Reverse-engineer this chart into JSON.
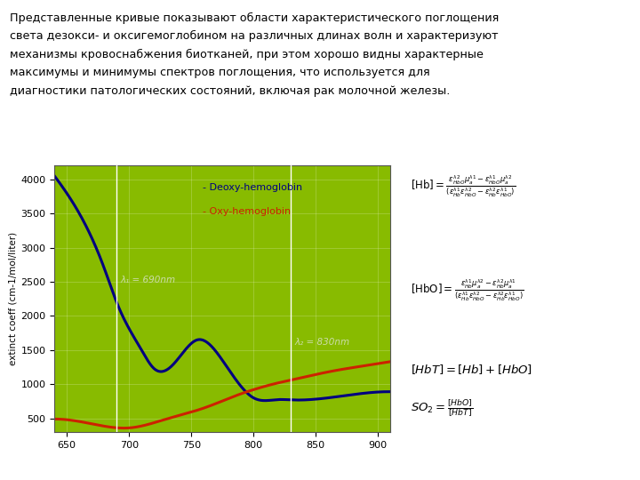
{
  "title_text": "Представленные кривые показывают области характеристического поглощения\nсвета дезокси- и оксигемоглобином на различных длинах волн и характеризуют\nмеханизмы кровоснабжения биотканей, при этом хорошо видны характерные\nмаксимумы и минимумы спектров поглощения, что используется для\nдиагностики патологических состояний, включая рак молочной железы.",
  "ylabel": "extinct coeff (cm-1/mol/liter)",
  "xlim": [
    640,
    910
  ],
  "ylim": [
    300,
    4200
  ],
  "yticks": [
    500,
    1000,
    1500,
    2000,
    2500,
    3000,
    3500,
    4000
  ],
  "xticks": [
    650,
    700,
    750,
    800,
    850,
    900
  ],
  "bg_color": "#88BB00",
  "deoxy_color": "#000080",
  "oxy_color": "#CC2200",
  "vline_color": "#FFFFFF",
  "vline1_x": 690,
  "vline2_x": 830,
  "lambda1_label": "λ₁ = 690nm",
  "lambda2_label": "λ₂ = 830nm",
  "legend_deoxy": "- Deoxy-hemoglobin",
  "legend_oxy": "- Oxy-hemoglobin"
}
